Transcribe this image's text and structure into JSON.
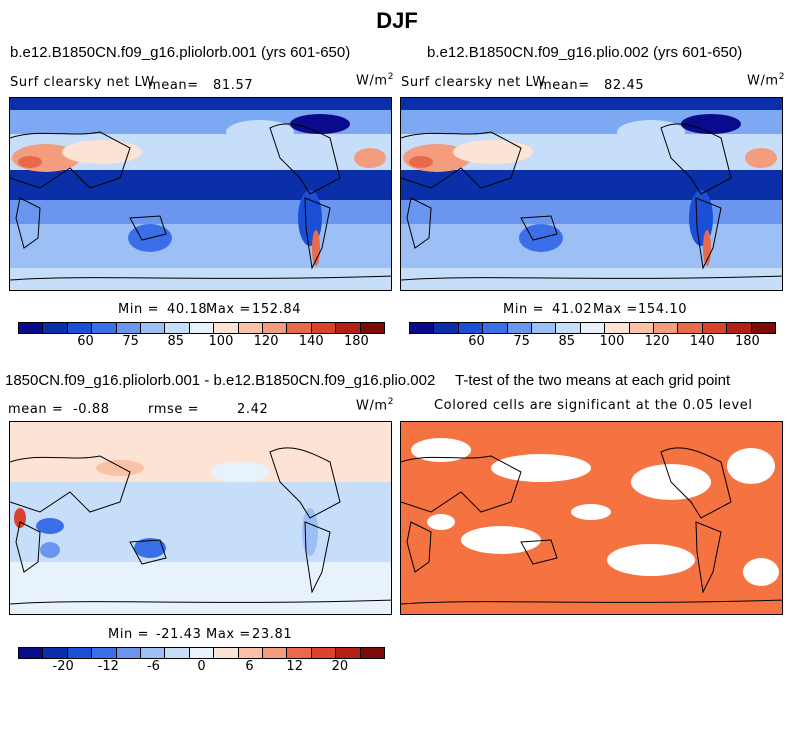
{
  "chart_data": [
    {
      "type": "heatmap",
      "season": "DJF",
      "title": "b.e12.B1850CN.f09_g16.pliolorb.001 (yrs 601-650)",
      "variable": "Surf clearsky net LW",
      "mean_label": "mean=",
      "mean": "81.57",
      "units": "W/m",
      "units_exp": "2",
      "min_label": "Min =",
      "min": "40.18",
      "max_label": "Max =",
      "max": "152.84",
      "colorbar_ticks": [
        "60",
        "75",
        "85",
        "100",
        "120",
        "140",
        "180"
      ]
    },
    {
      "type": "heatmap",
      "title": "b.e12.B1850CN.f09_g16.plio.002 (yrs 601-650)",
      "variable": "Surf clearsky net LW",
      "mean_label": "mean=",
      "mean": "82.45",
      "units": "W/m",
      "units_exp": "2",
      "min_label": "Min =",
      "min": "41.02",
      "max_label": "Max =",
      "max": "154.10",
      "colorbar_ticks": [
        "60",
        "75",
        "85",
        "100",
        "120",
        "140",
        "180"
      ]
    },
    {
      "type": "heatmap",
      "title": "1850CN.f09_g16.pliolorb.001 - b.e12.B1850CN.f09_g16.plio.002",
      "mean_label": "mean =",
      "mean": "-0.88",
      "rmse_label": "rmse =",
      "rmse": "2.42",
      "units": "W/m",
      "units_exp": "2",
      "min_label": "Min =",
      "min": "-21.43",
      "max_label": "Max =",
      "max": "23.81",
      "colorbar_ticks": [
        "-20",
        "-12",
        "-6",
        "0",
        "6",
        "12",
        "20"
      ]
    },
    {
      "type": "heatmap",
      "title": "T-test of the two means at each grid point",
      "subtitle": "Colored cells are significant at the 0.05 level"
    }
  ],
  "colors": {
    "colorbar": [
      "#0a0a8c",
      "#0b2fa8",
      "#1a4fd6",
      "#3a6fe8",
      "#6a96f0",
      "#9cc0f6",
      "#c6def9",
      "#e8f2fd",
      "#fde3d3",
      "#f9c2a6",
      "#f39d7e",
      "#e86a4b",
      "#d8432c",
      "#b42016",
      "#7f0a0a"
    ]
  }
}
